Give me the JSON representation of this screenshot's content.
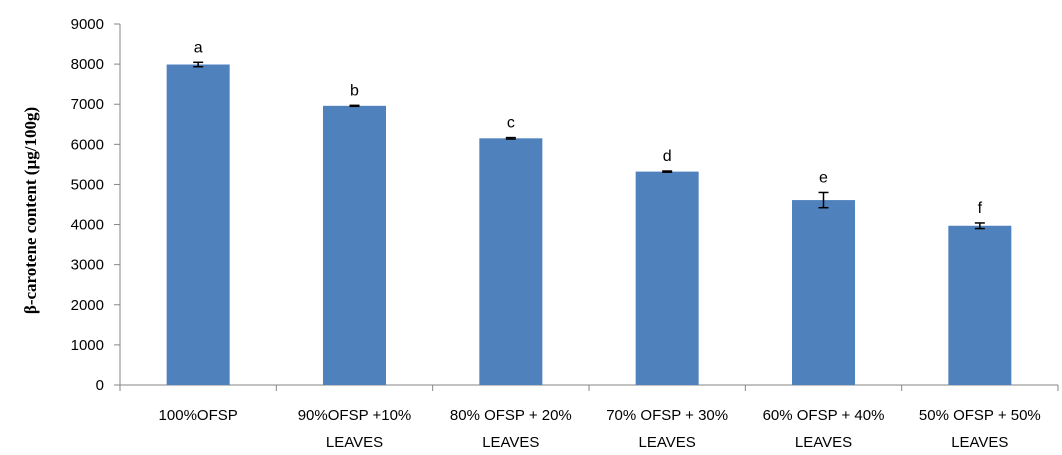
{
  "chart_data": {
    "type": "bar",
    "categories": [
      [
        "100%OFSP"
      ],
      [
        "90%OFSP +10%",
        "LEAVES"
      ],
      [
        "80% OFSP + 20%",
        "LEAVES"
      ],
      [
        "70% OFSP + 30%",
        "LEAVES"
      ],
      [
        "60% OFSP + 40%",
        "LEAVES"
      ],
      [
        "50% OFSP + 50%",
        "LEAVES"
      ]
    ],
    "values": [
      7990,
      6960,
      6150,
      5320,
      4610,
      3970
    ],
    "errors": [
      55,
      12,
      18,
      15,
      190,
      70
    ],
    "significance_letters": [
      "a",
      "b",
      "c",
      "d",
      "e",
      "f"
    ],
    "title": "",
    "xlabel": "",
    "ylabel": "β-carotene content (µg/100g)",
    "ylim": [
      0,
      9000
    ],
    "yticks": [
      0,
      1000,
      2000,
      3000,
      4000,
      5000,
      6000,
      7000,
      8000,
      9000
    ],
    "bar_color": "#4f81bd",
    "grid": false,
    "legend": "none"
  }
}
